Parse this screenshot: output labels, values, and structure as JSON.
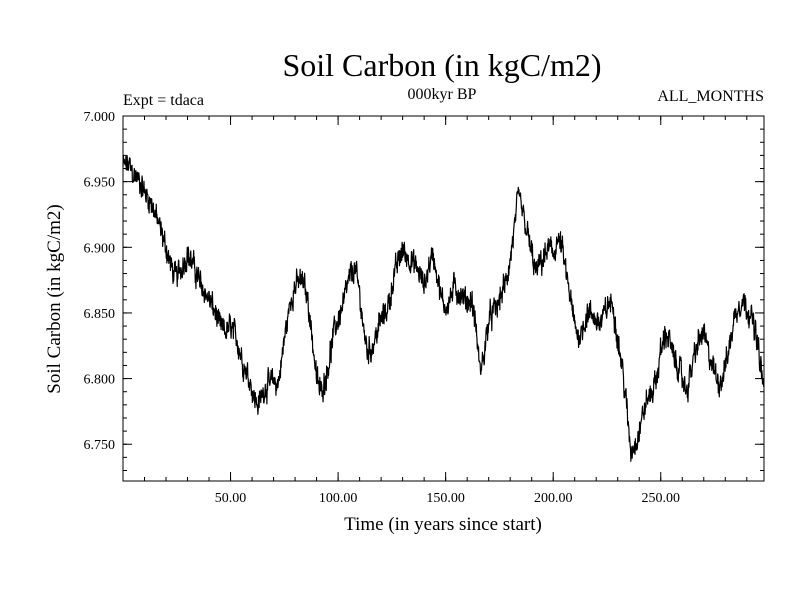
{
  "chart_data": {
    "type": "line",
    "title": "Soil Carbon (in kgC/m2)",
    "subtitle": "000kyr BP",
    "left_label": "Expt = tdaca",
    "right_label": "ALL_MONTHS",
    "xlabel": "Time (in years since start)",
    "ylabel": "Soil Carbon (in kgC/m2)",
    "xlim": [
      0,
      298
    ],
    "ylim": [
      6.722,
      7.0
    ],
    "xticks": [
      50,
      100,
      150,
      200,
      250
    ],
    "xtick_labels": [
      "50.00",
      "100.00",
      "150.00",
      "200.00",
      "250.00"
    ],
    "yticks": [
      6.75,
      6.8,
      6.85,
      6.9,
      6.95,
      7.0
    ],
    "ytick_labels": [
      "6.750",
      "6.800",
      "6.850",
      "6.900",
      "6.950",
      "7.000"
    ],
    "grid": false,
    "series": [
      {
        "name": "Soil Carbon",
        "color": "#000000",
        "envelope": [
          [
            0,
            6.962
          ],
          [
            3,
            6.962
          ],
          [
            5,
            6.955
          ],
          [
            8,
            6.95
          ],
          [
            10,
            6.942
          ],
          [
            13,
            6.935
          ],
          [
            15,
            6.925
          ],
          [
            17,
            6.915
          ],
          [
            20,
            6.9
          ],
          [
            23,
            6.882
          ],
          [
            25,
            6.878
          ],
          [
            28,
            6.888
          ],
          [
            30,
            6.895
          ],
          [
            33,
            6.885
          ],
          [
            36,
            6.872
          ],
          [
            40,
            6.86
          ],
          [
            43,
            6.85
          ],
          [
            45,
            6.84
          ],
          [
            48,
            6.835
          ],
          [
            50,
            6.84
          ],
          [
            53,
            6.83
          ],
          [
            56,
            6.81
          ],
          [
            59,
            6.8
          ],
          [
            61,
            6.785
          ],
          [
            63,
            6.78
          ],
          [
            65,
            6.79
          ],
          [
            67,
            6.795
          ],
          [
            70,
            6.798
          ],
          [
            72,
            6.795
          ],
          [
            73,
            6.805
          ],
          [
            75,
            6.83
          ],
          [
            78,
            6.86
          ],
          [
            80,
            6.87
          ],
          [
            82,
            6.875
          ],
          [
            84,
            6.872
          ],
          [
            86,
            6.86
          ],
          [
            88,
            6.83
          ],
          [
            90,
            6.8
          ],
          [
            92,
            6.79
          ],
          [
            94,
            6.8
          ],
          [
            96,
            6.815
          ],
          [
            98,
            6.835
          ],
          [
            100,
            6.845
          ],
          [
            102,
            6.855
          ],
          [
            104,
            6.868
          ],
          [
            106,
            6.88
          ],
          [
            108,
            6.883
          ],
          [
            110,
            6.865
          ],
          [
            112,
            6.835
          ],
          [
            114,
            6.82
          ],
          [
            116,
            6.825
          ],
          [
            118,
            6.835
          ],
          [
            120,
            6.845
          ],
          [
            122,
            6.85
          ],
          [
            124,
            6.86
          ],
          [
            126,
            6.878
          ],
          [
            128,
            6.89
          ],
          [
            130,
            6.898
          ],
          [
            132,
            6.893
          ],
          [
            134,
            6.89
          ],
          [
            136,
            6.885
          ],
          [
            138,
            6.88
          ],
          [
            140,
            6.87
          ],
          [
            142,
            6.885
          ],
          [
            144,
            6.895
          ],
          [
            146,
            6.88
          ],
          [
            148,
            6.86
          ],
          [
            150,
            6.855
          ],
          [
            152,
            6.86
          ],
          [
            154,
            6.87
          ],
          [
            156,
            6.865
          ],
          [
            158,
            6.862
          ],
          [
            160,
            6.858
          ],
          [
            162,
            6.86
          ],
          [
            164,
            6.84
          ],
          [
            166,
            6.805
          ],
          [
            168,
            6.82
          ],
          [
            170,
            6.845
          ],
          [
            172,
            6.85
          ],
          [
            174,
            6.855
          ],
          [
            176,
            6.865
          ],
          [
            178,
            6.872
          ],
          [
            180,
            6.89
          ],
          [
            182,
            6.915
          ],
          [
            184,
            6.94
          ],
          [
            186,
            6.925
          ],
          [
            188,
            6.91
          ],
          [
            190,
            6.895
          ],
          [
            192,
            6.88
          ],
          [
            194,
            6.888
          ],
          [
            196,
            6.892
          ],
          [
            198,
            6.9
          ],
          [
            200,
            6.895
          ],
          [
            202,
            6.905
          ],
          [
            204,
            6.9
          ],
          [
            206,
            6.88
          ],
          [
            208,
            6.86
          ],
          [
            210,
            6.84
          ],
          [
            212,
            6.832
          ],
          [
            214,
            6.84
          ],
          [
            216,
            6.85
          ],
          [
            218,
            6.848
          ],
          [
            220,
            6.845
          ],
          [
            222,
            6.842
          ],
          [
            224,
            6.85
          ],
          [
            226,
            6.858
          ],
          [
            228,
            6.855
          ],
          [
            230,
            6.83
          ],
          [
            232,
            6.81
          ],
          [
            234,
            6.78
          ],
          [
            236,
            6.745
          ],
          [
            238,
            6.75
          ],
          [
            240,
            6.76
          ],
          [
            242,
            6.775
          ],
          [
            244,
            6.785
          ],
          [
            246,
            6.79
          ],
          [
            248,
            6.8
          ],
          [
            250,
            6.82
          ],
          [
            252,
            6.835
          ],
          [
            254,
            6.83
          ],
          [
            256,
            6.815
          ],
          [
            258,
            6.81
          ],
          [
            260,
            6.8
          ],
          [
            262,
            6.79
          ],
          [
            264,
            6.805
          ],
          [
            266,
            6.82
          ],
          [
            268,
            6.83
          ],
          [
            270,
            6.835
          ],
          [
            272,
            6.82
          ],
          [
            274,
            6.81
          ],
          [
            276,
            6.8
          ],
          [
            278,
            6.798
          ],
          [
            280,
            6.81
          ],
          [
            282,
            6.825
          ],
          [
            284,
            6.845
          ],
          [
            286,
            6.855
          ],
          [
            288,
            6.86
          ],
          [
            290,
            6.855
          ],
          [
            292,
            6.848
          ],
          [
            294,
            6.835
          ],
          [
            296,
            6.815
          ],
          [
            298,
            6.79
          ]
        ]
      }
    ]
  }
}
